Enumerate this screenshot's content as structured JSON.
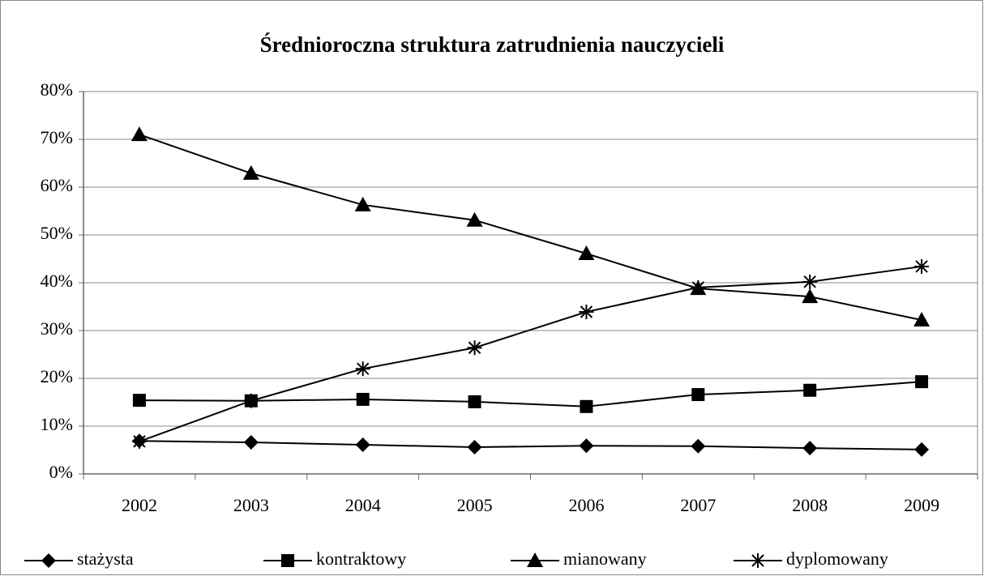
{
  "chart_data": {
    "type": "line",
    "title": "Średnioroczna struktura zatrudnienia nauczycieli",
    "categories": [
      "2002",
      "2003",
      "2004",
      "2005",
      "2006",
      "2007",
      "2008",
      "2009"
    ],
    "series": [
      {
        "name": "stażysta",
        "color": "#000000",
        "marker": "diamond",
        "values": [
          6.9,
          6.6,
          6.1,
          5.6,
          5.9,
          5.8,
          5.4,
          5.1
        ]
      },
      {
        "name": "kontraktowy",
        "color": "#000000",
        "marker": "square",
        "values": [
          15.4,
          15.3,
          15.6,
          15.1,
          14.1,
          16.6,
          17.5,
          19.3
        ]
      },
      {
        "name": "mianowany",
        "color": "#000000",
        "marker": "triangle",
        "values": [
          71.0,
          62.9,
          56.3,
          53.1,
          46.1,
          38.8,
          37.1,
          32.2
        ]
      },
      {
        "name": "dyplomowany",
        "color": "#000000",
        "marker": "star",
        "values": [
          6.8,
          15.3,
          22.0,
          26.4,
          33.9,
          39.0,
          40.2,
          43.4
        ]
      }
    ],
    "ylim": [
      0,
      80
    ],
    "yticks": [
      {
        "value": 0,
        "label": "0%"
      },
      {
        "value": 10,
        "label": "10%"
      },
      {
        "value": 20,
        "label": "20%"
      },
      {
        "value": 30,
        "label": "30%"
      },
      {
        "value": 40,
        "label": "40%"
      },
      {
        "value": 50,
        "label": "50%"
      },
      {
        "value": 60,
        "label": "60%"
      },
      {
        "value": 70,
        "label": "70%"
      },
      {
        "value": 80,
        "label": "80%"
      }
    ],
    "grid": true,
    "legend": "bottom"
  }
}
